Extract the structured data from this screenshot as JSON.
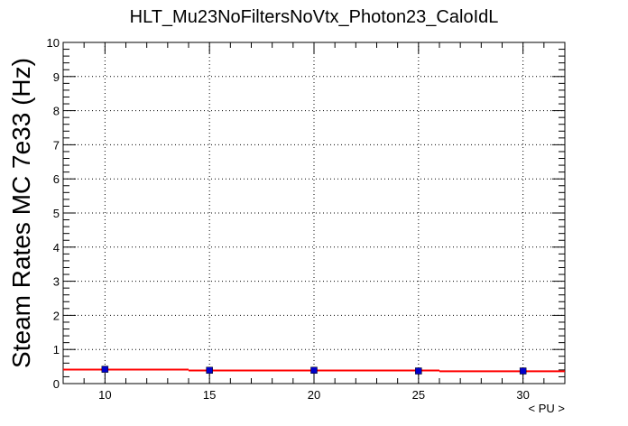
{
  "chart_data": {
    "type": "scatter",
    "title": "HLT_Mu23NoFiltersNoVtx_Photon23_CaloIdL",
    "xlabel": "< PU >",
    "ylabel": "Steam Rates MC 7e33 (Hz)",
    "xlim": [
      8,
      32
    ],
    "ylim": [
      0,
      10
    ],
    "x_ticks": [
      10,
      15,
      20,
      25,
      30
    ],
    "y_ticks": [
      0,
      1,
      2,
      3,
      4,
      5,
      6,
      7,
      8,
      9,
      10
    ],
    "grid": true,
    "series": [
      {
        "kind": "points",
        "marker": "square",
        "color": "#0000cc",
        "x": [
          10,
          15,
          20,
          25,
          30
        ],
        "y": [
          0.42,
          0.39,
          0.39,
          0.37,
          0.37
        ],
        "y_err": [
          0.03,
          0.03,
          0.03,
          0.03,
          0.03
        ]
      },
      {
        "kind": "fit",
        "color": "#ff0000",
        "steps": [
          {
            "x0": 8,
            "x1": 14,
            "y": 0.41
          },
          {
            "x0": 14,
            "x1": 26,
            "y": 0.385
          },
          {
            "x0": 26,
            "x1": 32,
            "y": 0.36
          }
        ]
      }
    ]
  }
}
